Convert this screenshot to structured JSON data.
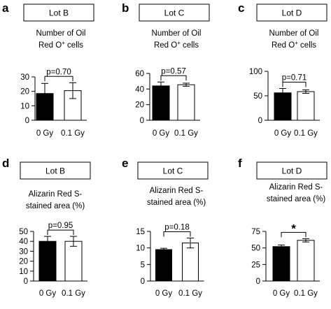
{
  "chart_data": [
    {
      "type": "bar",
      "panel_letter": "a",
      "lot_label": "Lot B",
      "title": "Number of Oil",
      "subtitle_prefix": "Red O",
      "subtitle_sup": "+",
      "subtitle_suffix": " cells",
      "categories": [
        "0 Gy",
        "0.1 Gy"
      ],
      "values": [
        18.5,
        20.5
      ],
      "errors": [
        7,
        5.5
      ],
      "yticks": [
        0,
        10,
        20,
        30
      ],
      "ylim": [
        0,
        30
      ],
      "significance": "p=0.70",
      "fill_colors": [
        "#000000",
        "#ffffff"
      ]
    },
    {
      "type": "bar",
      "panel_letter": "b",
      "lot_label": "Lot C",
      "title": "Number of Oil",
      "subtitle_prefix": "Red O",
      "subtitle_sup": "+",
      "subtitle_suffix": " cells",
      "categories": [
        "0 Gy",
        "0.1 Gy"
      ],
      "values": [
        44,
        45.5
      ],
      "errors": [
        5,
        2
      ],
      "yticks": [
        0,
        20,
        40,
        60
      ],
      "ylim": [
        0,
        60
      ],
      "significance": "p=0.57",
      "fill_colors": [
        "#000000",
        "#ffffff"
      ]
    },
    {
      "type": "bar",
      "panel_letter": "c",
      "lot_label": "Lot D",
      "title": "Number of Oil",
      "subtitle_prefix": "Red O",
      "subtitle_sup": "+",
      "subtitle_suffix": " cells",
      "categories": [
        "0 Gy",
        "0.1 Gy"
      ],
      "values": [
        56,
        58.5
      ],
      "errors": [
        9,
        3.5
      ],
      "yticks": [
        0,
        50,
        100
      ],
      "ylim": [
        0,
        100
      ],
      "significance": "p=0.71",
      "fill_colors": [
        "#000000",
        "#ffffff"
      ]
    },
    {
      "type": "bar",
      "panel_letter": "d",
      "lot_label": "Lot B",
      "title": "Alizarin Red S-",
      "subtitle_prefix": "stained area (%)",
      "subtitle_sup": "",
      "subtitle_suffix": "",
      "categories": [
        "0 Gy",
        "0.1 Gy"
      ],
      "values": [
        40,
        40
      ],
      "errors": [
        5,
        5
      ],
      "yticks": [
        0,
        10,
        20,
        30,
        40,
        50
      ],
      "ylim": [
        0,
        50
      ],
      "significance": "p=0.95",
      "fill_colors": [
        "#000000",
        "#ffffff"
      ]
    },
    {
      "type": "bar",
      "panel_letter": "e",
      "lot_label": "Lot C",
      "title": "Alizarin Red S-",
      "subtitle_prefix": "stained area (%)",
      "subtitle_sup": "",
      "subtitle_suffix": "",
      "categories": [
        "0 Gy",
        "0.1 Gy"
      ],
      "values": [
        9.5,
        11.5
      ],
      "errors": [
        0.4,
        1.5
      ],
      "yticks": [
        0,
        5,
        10,
        15
      ],
      "ylim": [
        0,
        15
      ],
      "significance": "p=0.18",
      "fill_colors": [
        "#000000",
        "#ffffff"
      ]
    },
    {
      "type": "bar",
      "panel_letter": "f",
      "lot_label": "Lot D",
      "title": "Alizarin Red S-",
      "subtitle_prefix": "stained area (%)",
      "subtitle_sup": "",
      "subtitle_suffix": "",
      "categories": [
        "0 Gy",
        "0.1 Gy"
      ],
      "values": [
        52,
        61.5
      ],
      "errors": [
        2.5,
        2.5
      ],
      "yticks": [
        0,
        25,
        50,
        75
      ],
      "ylim": [
        0,
        75
      ],
      "significance": "*",
      "fill_colors": [
        "#000000",
        "#ffffff"
      ]
    }
  ]
}
